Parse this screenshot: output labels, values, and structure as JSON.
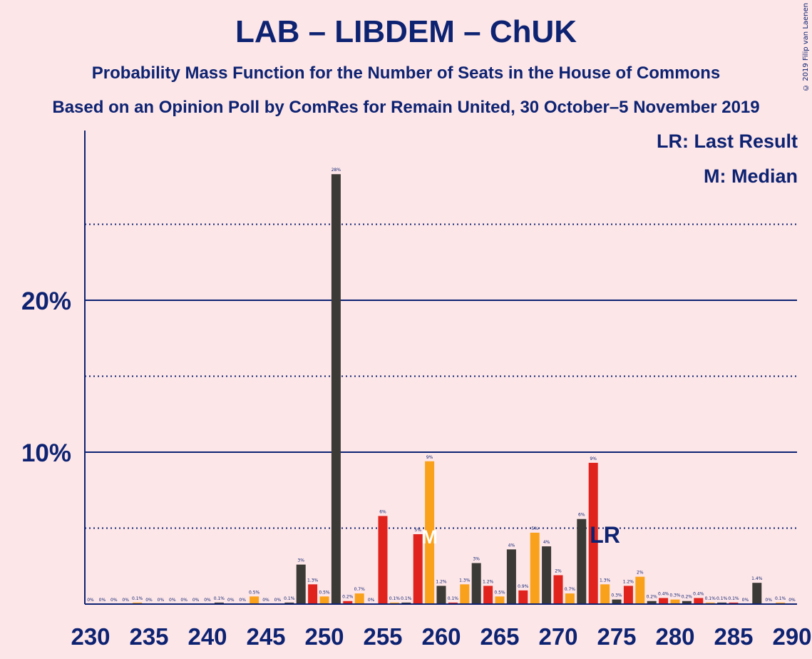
{
  "title": "LAB – LIBDEM – ChUK",
  "subtitle": "Probability Mass Function for the Number of Seats in the House of Commons",
  "subtitle2": "Based on an Opinion Poll by ComRes for Remain United, 30 October–5 November 2019",
  "copyright": "© 2019 Filip van Laenen",
  "legend": {
    "last_result": "LR: Last Result",
    "median": "M: Median"
  },
  "markers": {
    "last_result_label": "LR",
    "median_label": "M"
  },
  "colors": {
    "background": "#fde6e8",
    "axis": "#0d2372",
    "dark": "#3b3a36",
    "red": "#e0231c",
    "orange": "#f9a11b",
    "median_marker": "#ffffff"
  },
  "chart_data": {
    "type": "bar",
    "xlabel": "",
    "ylabel": "",
    "xlim": [
      229.5,
      290.5
    ],
    "ylim": [
      0,
      30
    ],
    "x_ticks": [
      230,
      235,
      240,
      245,
      250,
      255,
      260,
      265,
      270,
      275,
      280,
      285,
      290
    ],
    "y_ticks_labeled": [
      {
        "value": 10,
        "label": "10%"
      },
      {
        "value": 20,
        "label": "20%"
      }
    ],
    "y_dotted_lines": [
      5,
      15,
      25
    ],
    "y_solid_lines": [
      10,
      20
    ],
    "last_result_seat": 273,
    "median_seat": 259,
    "bars": [
      {
        "seat": 230,
        "value": 0.0,
        "label": "0%",
        "color": "dark"
      },
      {
        "seat": 231,
        "value": 0.0,
        "label": "0%",
        "color": "dark"
      },
      {
        "seat": 232,
        "value": 0.0,
        "label": "0%",
        "color": "dark"
      },
      {
        "seat": 233,
        "value": 0.0,
        "label": "0%",
        "color": "dark"
      },
      {
        "seat": 234,
        "value": 0.1,
        "label": "0.1%",
        "color": "orange"
      },
      {
        "seat": 235,
        "value": 0.0,
        "label": "0%",
        "color": "dark"
      },
      {
        "seat": 236,
        "value": 0.0,
        "label": "0%",
        "color": "dark"
      },
      {
        "seat": 237,
        "value": 0.0,
        "label": "0%",
        "color": "dark"
      },
      {
        "seat": 238,
        "value": 0.0,
        "label": "0%",
        "color": "dark"
      },
      {
        "seat": 239,
        "value": 0.0,
        "label": "0%",
        "color": "dark"
      },
      {
        "seat": 240,
        "value": 0.0,
        "label": "0%",
        "color": "dark"
      },
      {
        "seat": 241,
        "value": 0.1,
        "label": "0.1%",
        "color": "dark"
      },
      {
        "seat": 242,
        "value": 0.0,
        "label": "0%",
        "color": "dark"
      },
      {
        "seat": 243,
        "value": 0.0,
        "label": "0%",
        "color": "dark"
      },
      {
        "seat": 244,
        "value": 0.5,
        "label": "0.5%",
        "color": "orange"
      },
      {
        "seat": 245,
        "value": 0.0,
        "label": "0%",
        "color": "dark"
      },
      {
        "seat": 246,
        "value": 0.0,
        "label": "0%",
        "color": "dark"
      },
      {
        "seat": 247,
        "value": 0.1,
        "label": "0.1%",
        "color": "dark"
      },
      {
        "seat": 248,
        "value": 2.6,
        "label": "3%",
        "color": "dark"
      },
      {
        "seat": 249,
        "value": 1.3,
        "label": "1.3%",
        "color": "red"
      },
      {
        "seat": 250,
        "value": 0.5,
        "label": "0.5%",
        "color": "orange"
      },
      {
        "seat": 251,
        "value": 28.3,
        "label": "28%",
        "color": "dark"
      },
      {
        "seat": 252,
        "value": 0.2,
        "label": "0.2%",
        "color": "red"
      },
      {
        "seat": 253,
        "value": 0.7,
        "label": "0.7%",
        "color": "orange"
      },
      {
        "seat": 254,
        "value": 0.0,
        "label": "0%",
        "color": "dark"
      },
      {
        "seat": 255,
        "value": 5.8,
        "label": "6%",
        "color": "red"
      },
      {
        "seat": 256,
        "value": 0.1,
        "label": "0.1%",
        "color": "orange"
      },
      {
        "seat": 257,
        "value": 0.1,
        "label": "0.1%",
        "color": "dark"
      },
      {
        "seat": 258,
        "value": 4.6,
        "label": "5%",
        "color": "red"
      },
      {
        "seat": 259,
        "value": 9.4,
        "label": "9%",
        "color": "orange"
      },
      {
        "seat": 260,
        "value": 1.2,
        "label": "1.2%",
        "color": "dark"
      },
      {
        "seat": 261,
        "value": 0.1,
        "label": "0.1%",
        "color": "red"
      },
      {
        "seat": 262,
        "value": 1.3,
        "label": "1.3%",
        "color": "orange"
      },
      {
        "seat": 263,
        "value": 2.7,
        "label": "3%",
        "color": "dark"
      },
      {
        "seat": 264,
        "value": 1.2,
        "label": "1.2%",
        "color": "red"
      },
      {
        "seat": 265,
        "value": 0.5,
        "label": "0.5%",
        "color": "orange"
      },
      {
        "seat": 266,
        "value": 3.6,
        "label": "4%",
        "color": "dark"
      },
      {
        "seat": 267,
        "value": 0.9,
        "label": "0.9%",
        "color": "red"
      },
      {
        "seat": 268,
        "value": 4.7,
        "label": "5%",
        "color": "orange"
      },
      {
        "seat": 269,
        "value": 3.8,
        "label": "4%",
        "color": "dark"
      },
      {
        "seat": 270,
        "value": 1.9,
        "label": "2%",
        "color": "red"
      },
      {
        "seat": 271,
        "value": 0.7,
        "label": "0.7%",
        "color": "orange"
      },
      {
        "seat": 272,
        "value": 5.6,
        "label": "6%",
        "color": "dark"
      },
      {
        "seat": 273,
        "value": 9.3,
        "label": "9%",
        "color": "red"
      },
      {
        "seat": 274,
        "value": 1.3,
        "label": "1.3%",
        "color": "orange"
      },
      {
        "seat": 275,
        "value": 0.3,
        "label": "0.3%",
        "color": "dark"
      },
      {
        "seat": 276,
        "value": 1.2,
        "label": "1.2%",
        "color": "red"
      },
      {
        "seat": 277,
        "value": 1.8,
        "label": "2%",
        "color": "orange"
      },
      {
        "seat": 278,
        "value": 0.2,
        "label": "0.2%",
        "color": "dark"
      },
      {
        "seat": 279,
        "value": 0.4,
        "label": "0.4%",
        "color": "red"
      },
      {
        "seat": 280,
        "value": 0.3,
        "label": "0.3%",
        "color": "orange"
      },
      {
        "seat": 281,
        "value": 0.2,
        "label": "0.2%",
        "color": "dark"
      },
      {
        "seat": 282,
        "value": 0.4,
        "label": "0.4%",
        "color": "red"
      },
      {
        "seat": 283,
        "value": 0.1,
        "label": "0.1%",
        "color": "orange"
      },
      {
        "seat": 284,
        "value": 0.1,
        "label": "0.1%",
        "color": "dark"
      },
      {
        "seat": 285,
        "value": 0.1,
        "label": "0.1%",
        "color": "red"
      },
      {
        "seat": 286,
        "value": 0.0,
        "label": "0%",
        "color": "orange"
      },
      {
        "seat": 287,
        "value": 1.4,
        "label": "1.4%",
        "color": "dark"
      },
      {
        "seat": 288,
        "value": 0.0,
        "label": "0%",
        "color": "red"
      },
      {
        "seat": 289,
        "value": 0.1,
        "label": "0.1%",
        "color": "orange"
      },
      {
        "seat": 290,
        "value": 0.0,
        "label": "0%",
        "color": "dark"
      }
    ]
  }
}
